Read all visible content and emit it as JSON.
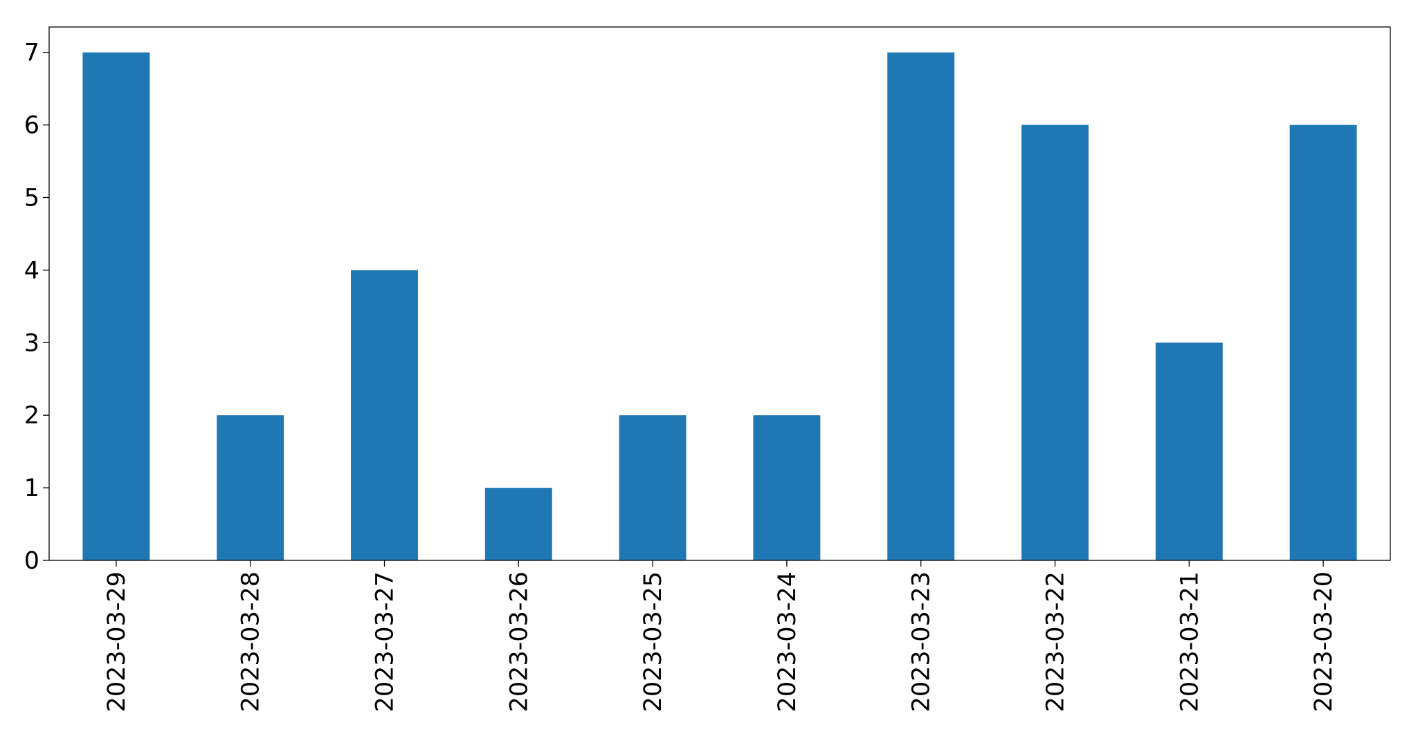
{
  "chart_data": {
    "type": "bar",
    "categories": [
      "2023-03-29",
      "2023-03-28",
      "2023-03-27",
      "2023-03-26",
      "2023-03-25",
      "2023-03-24",
      "2023-03-23",
      "2023-03-22",
      "2023-03-21",
      "2023-03-20"
    ],
    "values": [
      7,
      2,
      4,
      1,
      2,
      2,
      7,
      6,
      3,
      6
    ],
    "color": "#1f77b4",
    "ylim": [
      0,
      7.35
    ],
    "yticks": [
      0,
      1,
      2,
      3,
      4,
      5,
      6,
      7
    ],
    "grid": false
  }
}
